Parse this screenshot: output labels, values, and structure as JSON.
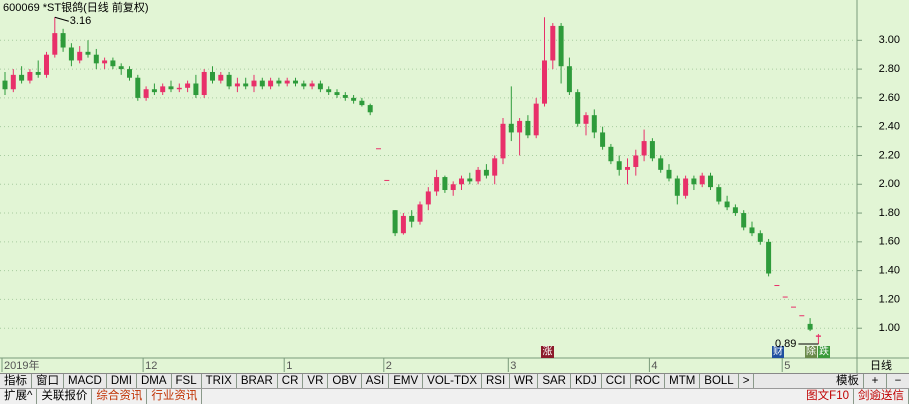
{
  "chart_data": {
    "type": "candlestick",
    "title": "600069 *ST银鸽(日线 前复权)",
    "categories": [
      "2019年",
      null,
      null,
      null,
      null,
      null,
      null,
      null,
      null,
      null,
      null,
      null,
      null,
      null,
      null,
      null,
      null,
      "12",
      null,
      null,
      null,
      null,
      null,
      null,
      null,
      null,
      null,
      null,
      null,
      null,
      null,
      null,
      null,
      null,
      "1",
      null,
      null,
      null,
      null,
      null,
      null,
      null,
      null,
      null,
      null,
      null,
      "2",
      null,
      null,
      null,
      null,
      null,
      null,
      null,
      null,
      null,
      null,
      null,
      null,
      null,
      null,
      "3",
      null,
      null,
      null,
      null,
      null,
      null,
      null,
      null,
      null,
      null,
      null,
      null,
      null,
      null,
      null,
      null,
      "4",
      null,
      null,
      null,
      null,
      null,
      null,
      null,
      null,
      null,
      null,
      null,
      null,
      null,
      null,
      null,
      "5",
      null,
      null,
      null,
      null
    ],
    "open": [
      2.72,
      2.66,
      2.76,
      2.72,
      2.78,
      2.76,
      2.9,
      3.05,
      2.95,
      2.86,
      2.92,
      2.9,
      2.84,
      2.86,
      2.82,
      2.8,
      2.74,
      2.6,
      2.66,
      2.64,
      2.68,
      2.66,
      2.67,
      2.7,
      2.62,
      2.78,
      2.72,
      2.76,
      2.68,
      2.7,
      2.68,
      2.72,
      2.68,
      2.72,
      2.7,
      2.72,
      2.7,
      2.68,
      2.7,
      2.66,
      2.64,
      2.62,
      2.6,
      2.58,
      2.55,
      2.25,
      2.03,
      1.82,
      1.66,
      1.78,
      1.74,
      1.86,
      1.95,
      2.05,
      1.96,
      2.0,
      2.04,
      2.02,
      2.1,
      2.06,
      2.18,
      2.42,
      2.36,
      2.44,
      2.34,
      2.56,
      2.86,
      3.1,
      2.82,
      2.64,
      2.42,
      2.48,
      2.36,
      2.26,
      2.16,
      2.1,
      2.12,
      2.2,
      2.3,
      2.18,
      2.1,
      2.04,
      1.92,
      2.04,
      2.0,
      2.06,
      1.98,
      1.88,
      1.84,
      1.8,
      1.7,
      1.66,
      1.6,
      1.3,
      1.22,
      1.15,
      1.09,
      1.03,
      0.94
    ],
    "high": [
      2.78,
      2.8,
      2.82,
      2.8,
      2.86,
      2.92,
      3.16,
      3.08,
      2.98,
      2.96,
      3.0,
      2.94,
      2.88,
      2.88,
      2.84,
      2.82,
      2.76,
      2.68,
      2.7,
      2.7,
      2.72,
      2.7,
      2.72,
      2.76,
      2.8,
      2.82,
      2.78,
      2.78,
      2.74,
      2.74,
      2.76,
      2.74,
      2.74,
      2.74,
      2.74,
      2.74,
      2.72,
      2.72,
      2.72,
      2.68,
      2.66,
      2.64,
      2.62,
      2.6,
      2.56,
      2.25,
      2.03,
      1.82,
      1.8,
      1.82,
      1.88,
      1.98,
      2.1,
      2.06,
      2.02,
      2.06,
      2.08,
      2.12,
      2.14,
      2.2,
      2.46,
      2.68,
      2.46,
      2.48,
      2.6,
      3.16,
      3.12,
      3.12,
      2.88,
      2.66,
      2.5,
      2.52,
      2.4,
      2.28,
      2.2,
      2.18,
      2.24,
      2.38,
      2.32,
      2.2,
      2.14,
      2.06,
      2.06,
      2.06,
      2.08,
      2.08,
      2.0,
      1.92,
      1.86,
      1.82,
      1.74,
      1.68,
      1.62,
      1.3,
      1.22,
      1.15,
      1.09,
      1.07,
      0.96
    ],
    "low": [
      2.62,
      2.64,
      2.7,
      2.7,
      2.74,
      2.74,
      2.88,
      2.92,
      2.82,
      2.84,
      2.88,
      2.8,
      2.8,
      2.8,
      2.76,
      2.72,
      2.58,
      2.58,
      2.62,
      2.62,
      2.64,
      2.64,
      2.64,
      2.6,
      2.6,
      2.7,
      2.7,
      2.66,
      2.64,
      2.66,
      2.64,
      2.66,
      2.66,
      2.68,
      2.68,
      2.68,
      2.66,
      2.66,
      2.64,
      2.62,
      2.6,
      2.58,
      2.56,
      2.54,
      2.48,
      2.25,
      2.03,
      1.64,
      1.65,
      1.7,
      1.72,
      1.82,
      1.92,
      1.94,
      1.92,
      1.96,
      2.0,
      2.0,
      2.04,
      2.0,
      2.14,
      2.3,
      2.2,
      2.32,
      2.32,
      2.54,
      2.8,
      2.7,
      2.62,
      2.4,
      2.34,
      2.32,
      2.24,
      2.14,
      2.06,
      2.0,
      2.06,
      2.16,
      2.16,
      2.08,
      2.02,
      1.86,
      1.9,
      1.96,
      1.98,
      1.96,
      1.86,
      1.82,
      1.78,
      1.68,
      1.64,
      1.58,
      1.36,
      1.3,
      1.22,
      1.15,
      1.09,
      0.98,
      0.89
    ],
    "close": [
      2.66,
      2.76,
      2.72,
      2.78,
      2.76,
      2.9,
      3.05,
      2.95,
      2.86,
      2.92,
      2.9,
      2.84,
      2.86,
      2.82,
      2.8,
      2.74,
      2.6,
      2.66,
      2.64,
      2.68,
      2.66,
      2.67,
      2.7,
      2.62,
      2.78,
      2.72,
      2.76,
      2.68,
      2.7,
      2.68,
      2.72,
      2.68,
      2.72,
      2.7,
      2.72,
      2.7,
      2.68,
      2.7,
      2.66,
      2.64,
      2.62,
      2.6,
      2.58,
      2.55,
      2.5,
      2.25,
      2.03,
      1.66,
      1.78,
      1.74,
      1.86,
      1.95,
      2.05,
      1.96,
      2.0,
      2.04,
      2.02,
      2.1,
      2.06,
      2.18,
      2.42,
      2.36,
      2.44,
      2.34,
      2.56,
      2.86,
      3.1,
      2.82,
      2.64,
      2.42,
      2.48,
      2.36,
      2.26,
      2.16,
      2.1,
      2.12,
      2.2,
      2.3,
      2.18,
      2.1,
      2.04,
      1.92,
      2.04,
      2.0,
      2.06,
      1.98,
      1.88,
      1.84,
      1.8,
      1.7,
      1.66,
      1.6,
      1.38,
      1.3,
      1.22,
      1.15,
      1.09,
      0.99,
      0.95
    ],
    "up_color": "#e8306a",
    "down_color": "#2e9b3b",
    "ylim": [
      0.8,
      3.28
    ],
    "yticks": [
      {
        "value": 1,
        "label": "1.00"
      },
      {
        "value": 1.2,
        "label": "1.20"
      },
      {
        "value": 1.4,
        "label": "1.40"
      },
      {
        "value": 1.6,
        "label": "1.60"
      },
      {
        "value": 1.8,
        "label": "1.80"
      },
      {
        "value": 2,
        "label": "2.00"
      },
      {
        "value": 2.2,
        "label": "2.20"
      },
      {
        "value": 2.4,
        "label": "2.40"
      },
      {
        "value": 2.6,
        "label": "2.60"
      },
      {
        "value": 2.8,
        "label": "2.80"
      },
      {
        "value": 3,
        "label": "3.00"
      }
    ],
    "grid": true
  },
  "badges": [
    "涨",
    "财",
    "除",
    "跌"
  ],
  "toolbar": {
    "tabs": [
      "指标",
      "窗口",
      "MACD",
      "DMI",
      "DMA",
      "FSL",
      "TRIX",
      "BRAR",
      "CR",
      "VR",
      "OBV",
      "ASI",
      "EMV",
      "VOL-TDX",
      "RSI",
      "WR",
      "SAR",
      "KDJ",
      "CCI",
      "ROC",
      "MTM",
      "BOLL",
      ">"
    ],
    "template": "模板",
    "plus": "+",
    "minus": "−"
  },
  "side": {
    "period": "日线"
  },
  "bottom": {
    "tabs": [
      "扩展^",
      "关联报价",
      "综合资讯",
      "行业资讯"
    ],
    "right": [
      "图文F10",
      "剑逾送信"
    ]
  }
}
